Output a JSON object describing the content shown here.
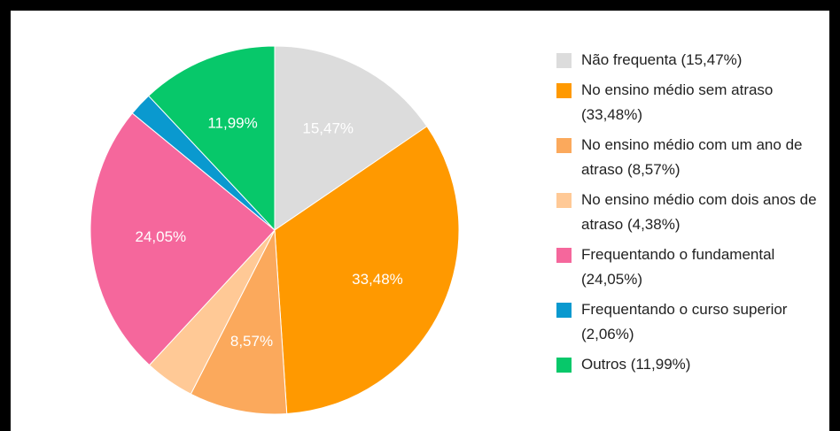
{
  "chart_data": {
    "type": "pie",
    "categories": [
      "Não frequenta (15,47%)",
      "No ensino médio sem atraso (33,48%)",
      "No ensino médio com um ano de atraso (8,57%)",
      "No ensino médio com dois anos de atraso (4,38%)",
      "Frequentando o fundamental (24,05%)",
      "Frequentando o curso superior (2,06%)",
      "Outros (11,99%)"
    ],
    "values": [
      15.47,
      33.48,
      8.57,
      4.38,
      24.05,
      2.06,
      11.99
    ],
    "value_labels": [
      "15,47%",
      "33,48%",
      "8,57%",
      null,
      "24,05%",
      null,
      "11,99%"
    ],
    "colors": [
      "#dcdcdc",
      "#ff9900",
      "#fba95c",
      "#ffc996",
      "#f5679c",
      "#0a99cf",
      "#07c86a"
    ],
    "legend": "right"
  }
}
